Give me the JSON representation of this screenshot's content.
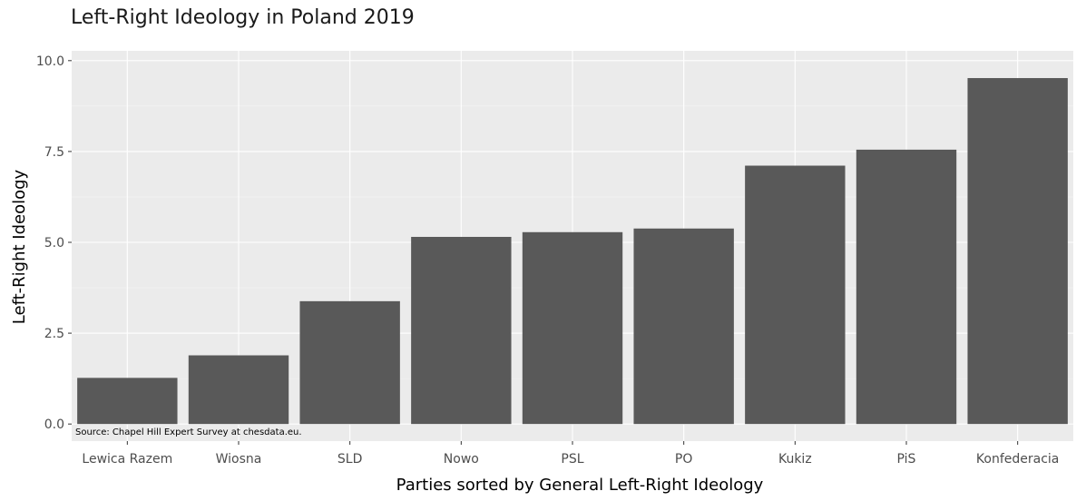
{
  "chart_data": {
    "type": "bar",
    "title": "Left-Right Ideology in Poland 2019",
    "xlabel": "Parties sorted by General Left-Right Ideology",
    "ylabel": "Left-Right Ideology",
    "categories": [
      "Lewica Razem",
      "Wiosna",
      "SLD",
      "Nowo",
      "PSL",
      "PO",
      "Kukiz",
      "PiS",
      "Konfederacia"
    ],
    "values": [
      1.27,
      1.89,
      3.38,
      5.15,
      5.28,
      5.38,
      7.11,
      7.55,
      9.52
    ],
    "ylim": [
      -0.47,
      10.27
    ],
    "yticks": [
      0,
      2.5,
      5,
      7.5,
      10
    ],
    "ytick_labels": [
      "0.0",
      "2.5",
      "5.0",
      "7.5",
      "10.0"
    ],
    "grid": true,
    "annotation": "Source: Chapel Hill Expert Survey at chesdata.eu.",
    "colors": {
      "bar": "#595959",
      "panel": "#ebebeb",
      "grid_major": "#ffffff",
      "grid_minor": "#f5f5f5"
    }
  }
}
